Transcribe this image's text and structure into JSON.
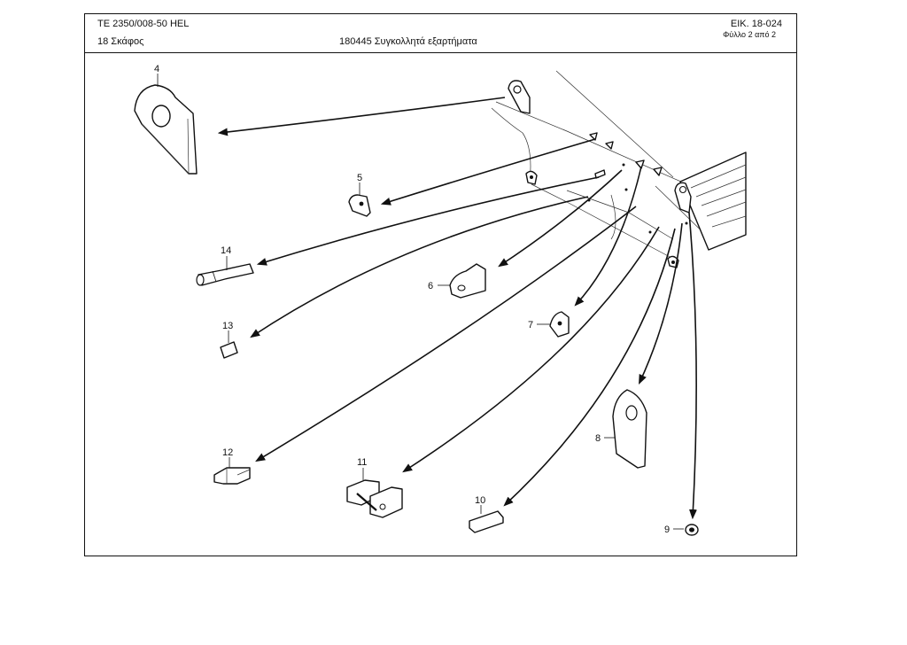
{
  "header": {
    "doc_code": "TE  2350/008-50 HEL",
    "section": "18 Σκάφος",
    "part_group": "180445 Συγκολλητά εξαρτήματα",
    "figure_no": "ΕΙΚ. 18-024",
    "sheet_no": "Φύλλο 2 από 2"
  },
  "callouts": {
    "c4": "4",
    "c5": "5",
    "c14": "14",
    "c13": "13",
    "c6": "6",
    "c7": "7",
    "c8": "8",
    "c12": "12",
    "c11": "11",
    "c10": "10",
    "c9": "9"
  }
}
